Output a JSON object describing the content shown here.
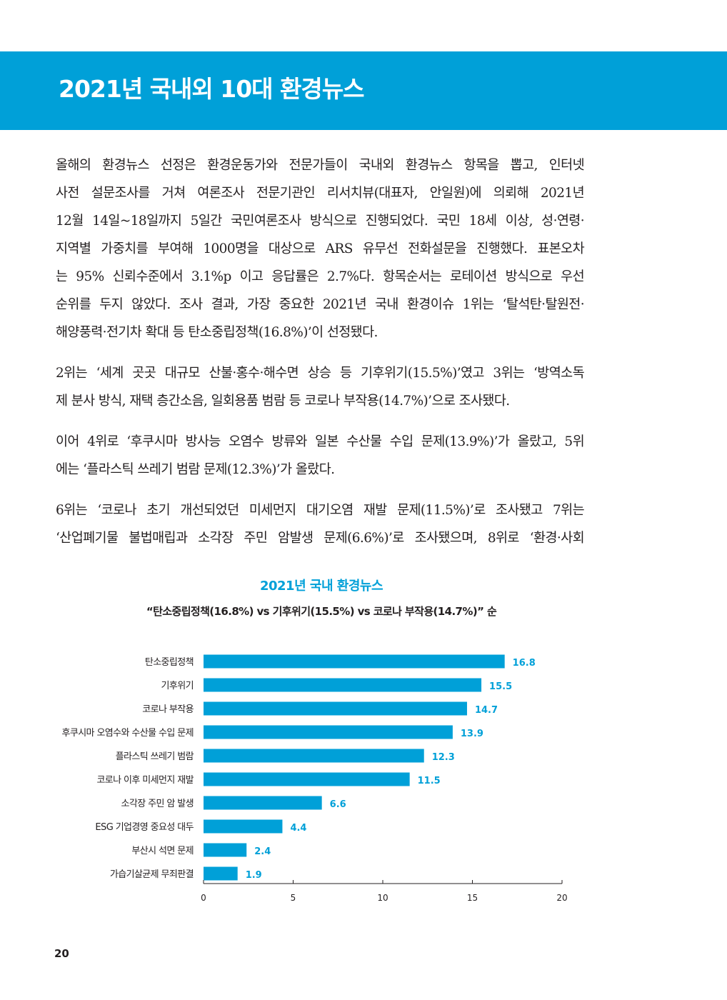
{
  "header": {
    "title": "2021년 국내외 10대 환경뉴스"
  },
  "body": {
    "paragraphs": [
      {
        "lines": [
          "올해의 환경뉴스 선정은 환경운동가와 전문가들이 국내외 환경뉴스 항목을 뽑고, 인터넷",
          "사전 설문조사를 거쳐 여론조사 전문기관인 리서치뷰(대표자, 안일원)에 의뢰해 2021년",
          "12월 14일~18일까지 5일간 국민여론조사 방식으로 진행되었다. 국민 18세 이상, 성·연령·",
          "지역별 가중치를 부여해 1000명을 대상으로 ARS 유무선 전화설문을 진행했다.  표본오차",
          "는 95% 신뢰수준에서 3.1%p 이고 응답률은 2.7%다. 항목순서는 로테이션 방식으로 우선",
          "순위를 두지 않았다. 조사 결과, 가장 중요한 2021년 국내 환경이슈 1위는 ‘탈석탄·탈원전·",
          "해양풍력·전기차 확대 등 탄소중립정책(16.8%)’이 선정됐다."
        ]
      },
      {
        "lines": [
          "2위는 ‘세계 곳곳 대규모 산불·홍수·해수면 상승 등 기후위기(15.5%)’였고 3위는 ‘방역소독",
          "제 분사 방식, 재택 층간소음, 일회용품 범람 등 코로나 부작용(14.7%)’으로 조사됐다."
        ]
      },
      {
        "lines": [
          "이어 4위로 ‘후쿠시마 방사능 오염수 방류와 일본 수산물 수입 문제(13.9%)’가 올랐고, 5위",
          "에는 ‘플라스틱 쓰레기 범람 문제(12.3%)’가 올랐다."
        ]
      },
      {
        "lines": [
          "6위는 ‘코로나 초기 개선되었던 미세먼지 대기오염 재발 문제(11.5%)’로 조사됐고 7위는",
          "‘산업폐기물 불법매립과 소각장 주민 암발생 문제(6.6%)’로 조사됐으며, 8위로 ‘환경·사회"
        ]
      }
    ]
  },
  "chart_data": {
    "type": "bar",
    "orientation": "horizontal",
    "title": "2021년 국내 환경뉴스",
    "subtitle": "“탄소중립정책(16.8%) vs 기후위기(15.5%) vs 코로나 부작용(14.7%)” 순",
    "categories": [
      "탄소중립정책",
      "기후위기",
      "코로나 부작용",
      "후쿠시마 오염수와 수산물 수입 문제",
      "플라스틱 쓰레기 범람",
      "코로나 이후 미세먼지 재발",
      "소각장 주민 암 발생",
      "ESG 기업경영 중요성 대두",
      "부산시 석면 문제",
      "가습기살균제 무죄판결"
    ],
    "values": [
      16.8,
      15.5,
      14.7,
      13.9,
      12.3,
      11.5,
      6.6,
      4.4,
      2.4,
      1.9
    ],
    "xlim": [
      0,
      20
    ],
    "xticks": [
      0,
      5,
      10,
      15,
      20
    ],
    "grid": false,
    "bar_color": "#00a0d8",
    "label_color": "#00a0d8"
  },
  "footer": {
    "page_number": "20"
  },
  "colors": {
    "accent": "#00a0d8",
    "text": "#231f20"
  }
}
